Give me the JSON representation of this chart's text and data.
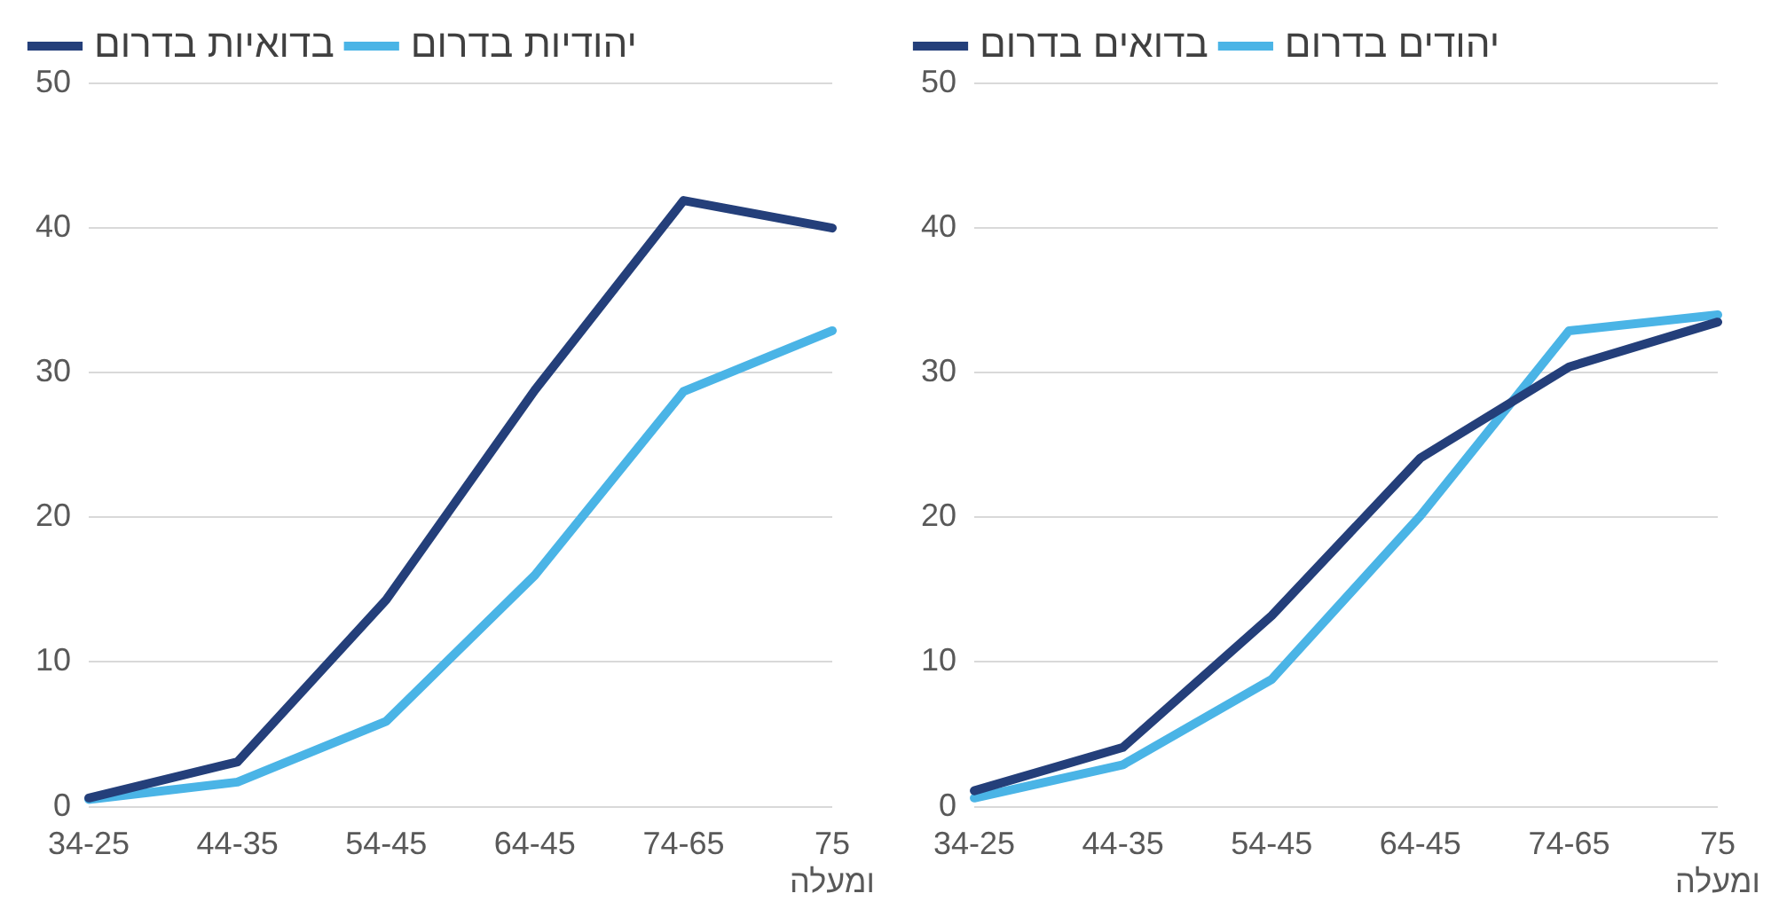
{
  "chart_data": [
    {
      "type": "line",
      "categories": [
        "34-25",
        "44-35",
        "54-45",
        "64-45",
        "74-65",
        "75 ומעלה"
      ],
      "series": [
        {
          "name": "בדואיות בדרום",
          "color": "#243f7a",
          "values": [
            0.6,
            3.1,
            14.3,
            28.8,
            41.9,
            40.0
          ]
        },
        {
          "name": "יהודיות בדרום",
          "color": "#4ab4e6",
          "values": [
            0.5,
            1.7,
            5.9,
            16.0,
            28.7,
            32.9
          ]
        }
      ],
      "ylim": [
        0,
        50
      ],
      "yticks": [
        0,
        10,
        20,
        30,
        40,
        50
      ],
      "grid": "y",
      "legend": "top left"
    },
    {
      "type": "line",
      "categories": [
        "34-25",
        "44-35",
        "54-45",
        "64-45",
        "74-65",
        "75 ומעלה"
      ],
      "series": [
        {
          "name": "בדואים בדרום",
          "color": "#243f7a",
          "values": [
            1.1,
            4.1,
            13.2,
            24.1,
            30.4,
            33.5
          ]
        },
        {
          "name": "יהודים בדרום",
          "color": "#4ab4e6",
          "values": [
            0.6,
            2.9,
            8.8,
            20.1,
            32.9,
            34.0
          ]
        }
      ],
      "ylim": [
        0,
        50
      ],
      "yticks": [
        0,
        10,
        20,
        30,
        40,
        50
      ],
      "grid": "y",
      "legend": "top left"
    }
  ]
}
